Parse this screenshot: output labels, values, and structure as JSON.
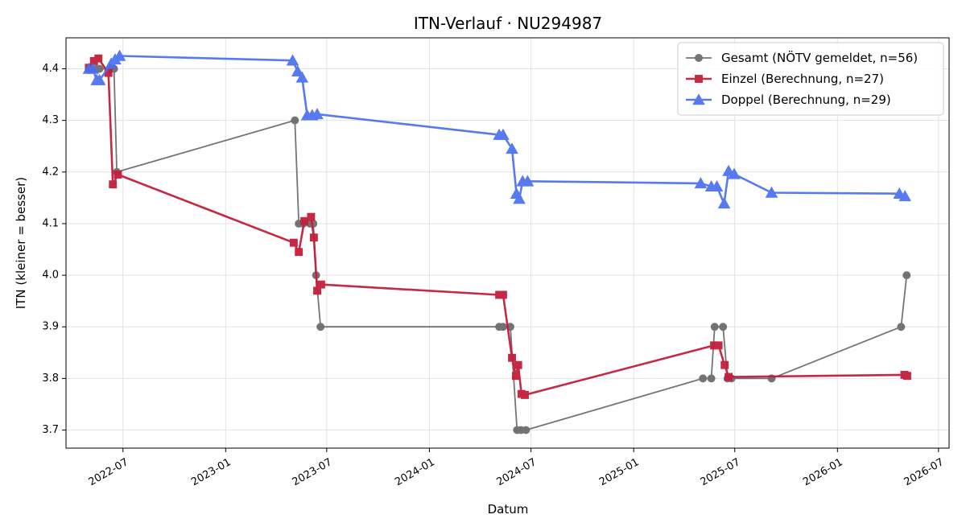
{
  "chart_data": {
    "type": "line",
    "title": "ITN-Verlauf · NU294987",
    "xlabel": "Datum",
    "ylabel": "ITN  (kleiner = besser)",
    "x_ticks": [
      "2022-07",
      "2023-01",
      "2023-07",
      "2024-01",
      "2024-07",
      "2025-01",
      "2025-07",
      "2026-01",
      "2026-07"
    ],
    "y_ticks": [
      3.7,
      3.8,
      3.9,
      4.0,
      4.1,
      4.2,
      4.3,
      4.4
    ],
    "xlim": [
      "2022-03-21",
      "2026-07-20"
    ],
    "ylim": [
      3.665,
      4.46
    ],
    "grid": true,
    "legend_position": "top-right",
    "series": [
      {
        "name": "Gesamt (NÖTV gemeldet, n=56)",
        "color": "#404040",
        "marker": "circle",
        "points": [
          [
            "2022-05-01",
            4.4
          ],
          [
            "2022-05-06",
            4.4
          ],
          [
            "2022-05-15",
            4.4
          ],
          [
            "2022-05-20",
            4.4
          ],
          [
            "2022-06-10",
            4.4
          ],
          [
            "2022-06-15",
            4.4
          ],
          [
            "2022-06-20",
            4.2
          ],
          [
            "2023-05-05",
            4.3
          ],
          [
            "2023-05-12",
            4.1
          ],
          [
            "2023-05-20",
            4.1
          ],
          [
            "2023-06-01",
            4.1
          ],
          [
            "2023-06-07",
            4.1
          ],
          [
            "2023-06-12",
            4.0
          ],
          [
            "2023-06-20",
            3.9
          ],
          [
            "2024-05-05",
            3.9
          ],
          [
            "2024-05-12",
            3.9
          ],
          [
            "2024-05-25",
            3.9
          ],
          [
            "2024-06-06",
            3.7
          ],
          [
            "2024-06-13",
            3.7
          ],
          [
            "2024-06-22",
            3.7
          ],
          [
            "2025-05-05",
            3.8
          ],
          [
            "2025-05-20",
            3.8
          ],
          [
            "2025-05-26",
            3.9
          ],
          [
            "2025-06-10",
            3.9
          ],
          [
            "2025-06-18",
            3.8
          ],
          [
            "2025-06-25",
            3.8
          ],
          [
            "2025-09-05",
            3.8
          ],
          [
            "2026-04-25",
            3.9
          ],
          [
            "2026-05-05",
            4.0
          ]
        ]
      },
      {
        "name": "Einzel (Berechnung, n=27)",
        "color": "#c41e3a",
        "marker": "square",
        "points": [
          [
            "2022-05-01",
            4.402
          ],
          [
            "2022-05-10",
            4.415
          ],
          [
            "2022-05-18",
            4.42
          ],
          [
            "2022-06-05",
            4.392
          ],
          [
            "2022-06-13",
            4.176
          ],
          [
            "2022-06-22",
            4.195
          ],
          [
            "2023-05-03",
            4.063
          ],
          [
            "2023-05-12",
            4.045
          ],
          [
            "2023-05-22",
            4.105
          ],
          [
            "2023-06-03",
            4.113
          ],
          [
            "2023-06-08",
            4.073
          ],
          [
            "2023-06-14",
            3.97
          ],
          [
            "2023-06-21",
            3.982
          ],
          [
            "2024-05-05",
            3.962
          ],
          [
            "2024-05-12",
            3.962
          ],
          [
            "2024-05-28",
            3.84
          ],
          [
            "2024-06-04",
            3.805
          ],
          [
            "2024-06-08",
            3.826
          ],
          [
            "2024-06-14",
            3.77
          ],
          [
            "2024-06-20",
            3.768
          ],
          [
            "2025-05-25",
            3.864
          ],
          [
            "2025-06-02",
            3.864
          ],
          [
            "2025-06-13",
            3.826
          ],
          [
            "2025-06-20",
            3.803
          ],
          [
            "2026-05-01",
            3.807
          ],
          [
            "2026-05-06",
            3.805
          ]
        ]
      },
      {
        "name": "Doppel (Berechnung, n=29)",
        "color": "#4a6ff0",
        "marker": "triangle",
        "points": [
          [
            "2022-05-01",
            4.4
          ],
          [
            "2022-05-08",
            4.4
          ],
          [
            "2022-05-15",
            4.378
          ],
          [
            "2022-05-20",
            4.378
          ],
          [
            "2022-06-10",
            4.41
          ],
          [
            "2022-06-17",
            4.418
          ],
          [
            "2022-06-25",
            4.425
          ],
          [
            "2023-05-01",
            4.416
          ],
          [
            "2023-05-10",
            4.395
          ],
          [
            "2023-05-18",
            4.383
          ],
          [
            "2023-05-27",
            4.31
          ],
          [
            "2023-06-05",
            4.31
          ],
          [
            "2023-06-14",
            4.312
          ],
          [
            "2024-05-05",
            4.272
          ],
          [
            "2024-05-12",
            4.272
          ],
          [
            "2024-05-28",
            4.245
          ],
          [
            "2024-06-05",
            4.158
          ],
          [
            "2024-06-10",
            4.148
          ],
          [
            "2024-06-16",
            4.182
          ],
          [
            "2024-06-25",
            4.182
          ],
          [
            "2025-05-01",
            4.178
          ],
          [
            "2025-05-20",
            4.172
          ],
          [
            "2025-05-30",
            4.172
          ],
          [
            "2025-06-12",
            4.139
          ],
          [
            "2025-06-20",
            4.202
          ],
          [
            "2025-06-30",
            4.196
          ],
          [
            "2025-09-05",
            4.16
          ],
          [
            "2026-04-22",
            4.158
          ],
          [
            "2026-05-02",
            4.153
          ]
        ]
      }
    ]
  }
}
